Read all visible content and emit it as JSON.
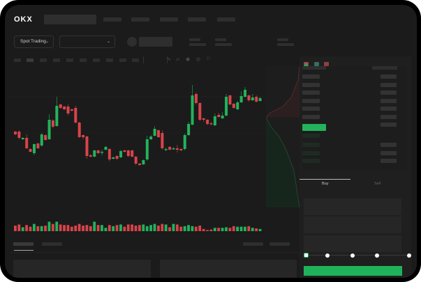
{
  "header": {
    "logo": "OKX",
    "nav_count": 5
  },
  "controls": {
    "market_select": "Spot Trading",
    "pair_select": ""
  },
  "order_form": {
    "tabs": [
      "Buy",
      "Sell"
    ],
    "active_tab": "Buy",
    "leverage_slider_value": 0
  },
  "colors": {
    "up": "#22b35c",
    "down": "#d9434a",
    "background": "#1b1b1b",
    "accent": "#20b25a"
  },
  "icons": [
    "layout-both-icon",
    "layout-bids-icon",
    "layout-asks-icon",
    "indicator-icon",
    "ruler-icon",
    "camera-icon",
    "settings-icon",
    "fullscreen-icon"
  ],
  "chart_data": {
    "type": "candlestick",
    "ohlc": [
      [
        68,
        64,
        69,
        63
      ],
      [
        68,
        59,
        70,
        57
      ],
      [
        57,
        59,
        60,
        56
      ],
      [
        59,
        44,
        64,
        43
      ],
      [
        43,
        39,
        44,
        38
      ],
      [
        37,
        50,
        51,
        34
      ],
      [
        51,
        44,
        52,
        43
      ],
      [
        48,
        64,
        66,
        46
      ],
      [
        63,
        56,
        64,
        55
      ],
      [
        57,
        85,
        93,
        56
      ],
      [
        84,
        75,
        86,
        73
      ],
      [
        76,
        105,
        118,
        75
      ],
      [
        107,
        102,
        108,
        101
      ],
      [
        104,
        100,
        105,
        99
      ],
      [
        104,
        94,
        107,
        91
      ],
      [
        100,
        98,
        101,
        97
      ],
      [
        102,
        81,
        105,
        80
      ],
      [
        81,
        60,
        82,
        59
      ],
      [
        63,
        60,
        64,
        57
      ],
      [
        61,
        33,
        62,
        29
      ],
      [
        34,
        32,
        36,
        31
      ],
      [
        32,
        41,
        42,
        31
      ],
      [
        41,
        37,
        42,
        36
      ],
      [
        38,
        39,
        42,
        34
      ],
      [
        42,
        46,
        47,
        41
      ],
      [
        43,
        28,
        44,
        25
      ],
      [
        29,
        31,
        32,
        28
      ],
      [
        33,
        29,
        34,
        27
      ],
      [
        31,
        40,
        42,
        30
      ],
      [
        41,
        39,
        42,
        38
      ],
      [
        41,
        33,
        42,
        31
      ],
      [
        41,
        32,
        42,
        31
      ],
      [
        32,
        22,
        33,
        20
      ],
      [
        22,
        20,
        23,
        19
      ],
      [
        21,
        27,
        28,
        20
      ],
      [
        28,
        57,
        62,
        26
      ],
      [
        57,
        61,
        63,
        56
      ],
      [
        62,
        72,
        76,
        61
      ],
      [
        70,
        60,
        71,
        59
      ],
      [
        66,
        44,
        70,
        42
      ],
      [
        43,
        43,
        45,
        40
      ],
      [
        46,
        42,
        47,
        41
      ],
      [
        43,
        44,
        46,
        42
      ],
      [
        44,
        42,
        49,
        38
      ],
      [
        43,
        41,
        44,
        40
      ],
      [
        43,
        63,
        65,
        41
      ],
      [
        63,
        79,
        82,
        62
      ],
      [
        78,
        120,
        135,
        77
      ],
      [
        122,
        109,
        124,
        107
      ],
      [
        109,
        85,
        110,
        83
      ],
      [
        87,
        85,
        88,
        82
      ],
      [
        85,
        79,
        86,
        77
      ],
      [
        80,
        79,
        82,
        77
      ],
      [
        77,
        90,
        94,
        76
      ],
      [
        92,
        89,
        95,
        88
      ],
      [
        87,
        91,
        96,
        86
      ],
      [
        91,
        118,
        122,
        90
      ],
      [
        120,
        107,
        121,
        106
      ],
      [
        108,
        102,
        109,
        101
      ],
      [
        100,
        110,
        112,
        99
      ],
      [
        110,
        119,
        126,
        109
      ],
      [
        118,
        128,
        132,
        117
      ],
      [
        120,
        113,
        121,
        111
      ],
      [
        113,
        117,
        122,
        112
      ],
      [
        118,
        111,
        120,
        110
      ],
      [
        112,
        116,
        118,
        111
      ]
    ],
    "volume": [
      10,
      12,
      7,
      11,
      8,
      13,
      9,
      9,
      10,
      17,
      13,
      17,
      12,
      11,
      11,
      8,
      10,
      13,
      10,
      11,
      9,
      17,
      11,
      11,
      6,
      11,
      9,
      11,
      12,
      8,
      12,
      12,
      10,
      11,
      12,
      9,
      11,
      13,
      10,
      13,
      12,
      7,
      13,
      12,
      8,
      9,
      11,
      9,
      8,
      10,
      4,
      2,
      3,
      6,
      6,
      6,
      7,
      6,
      9,
      8,
      8,
      8,
      9,
      6,
      5,
      4
    ]
  }
}
